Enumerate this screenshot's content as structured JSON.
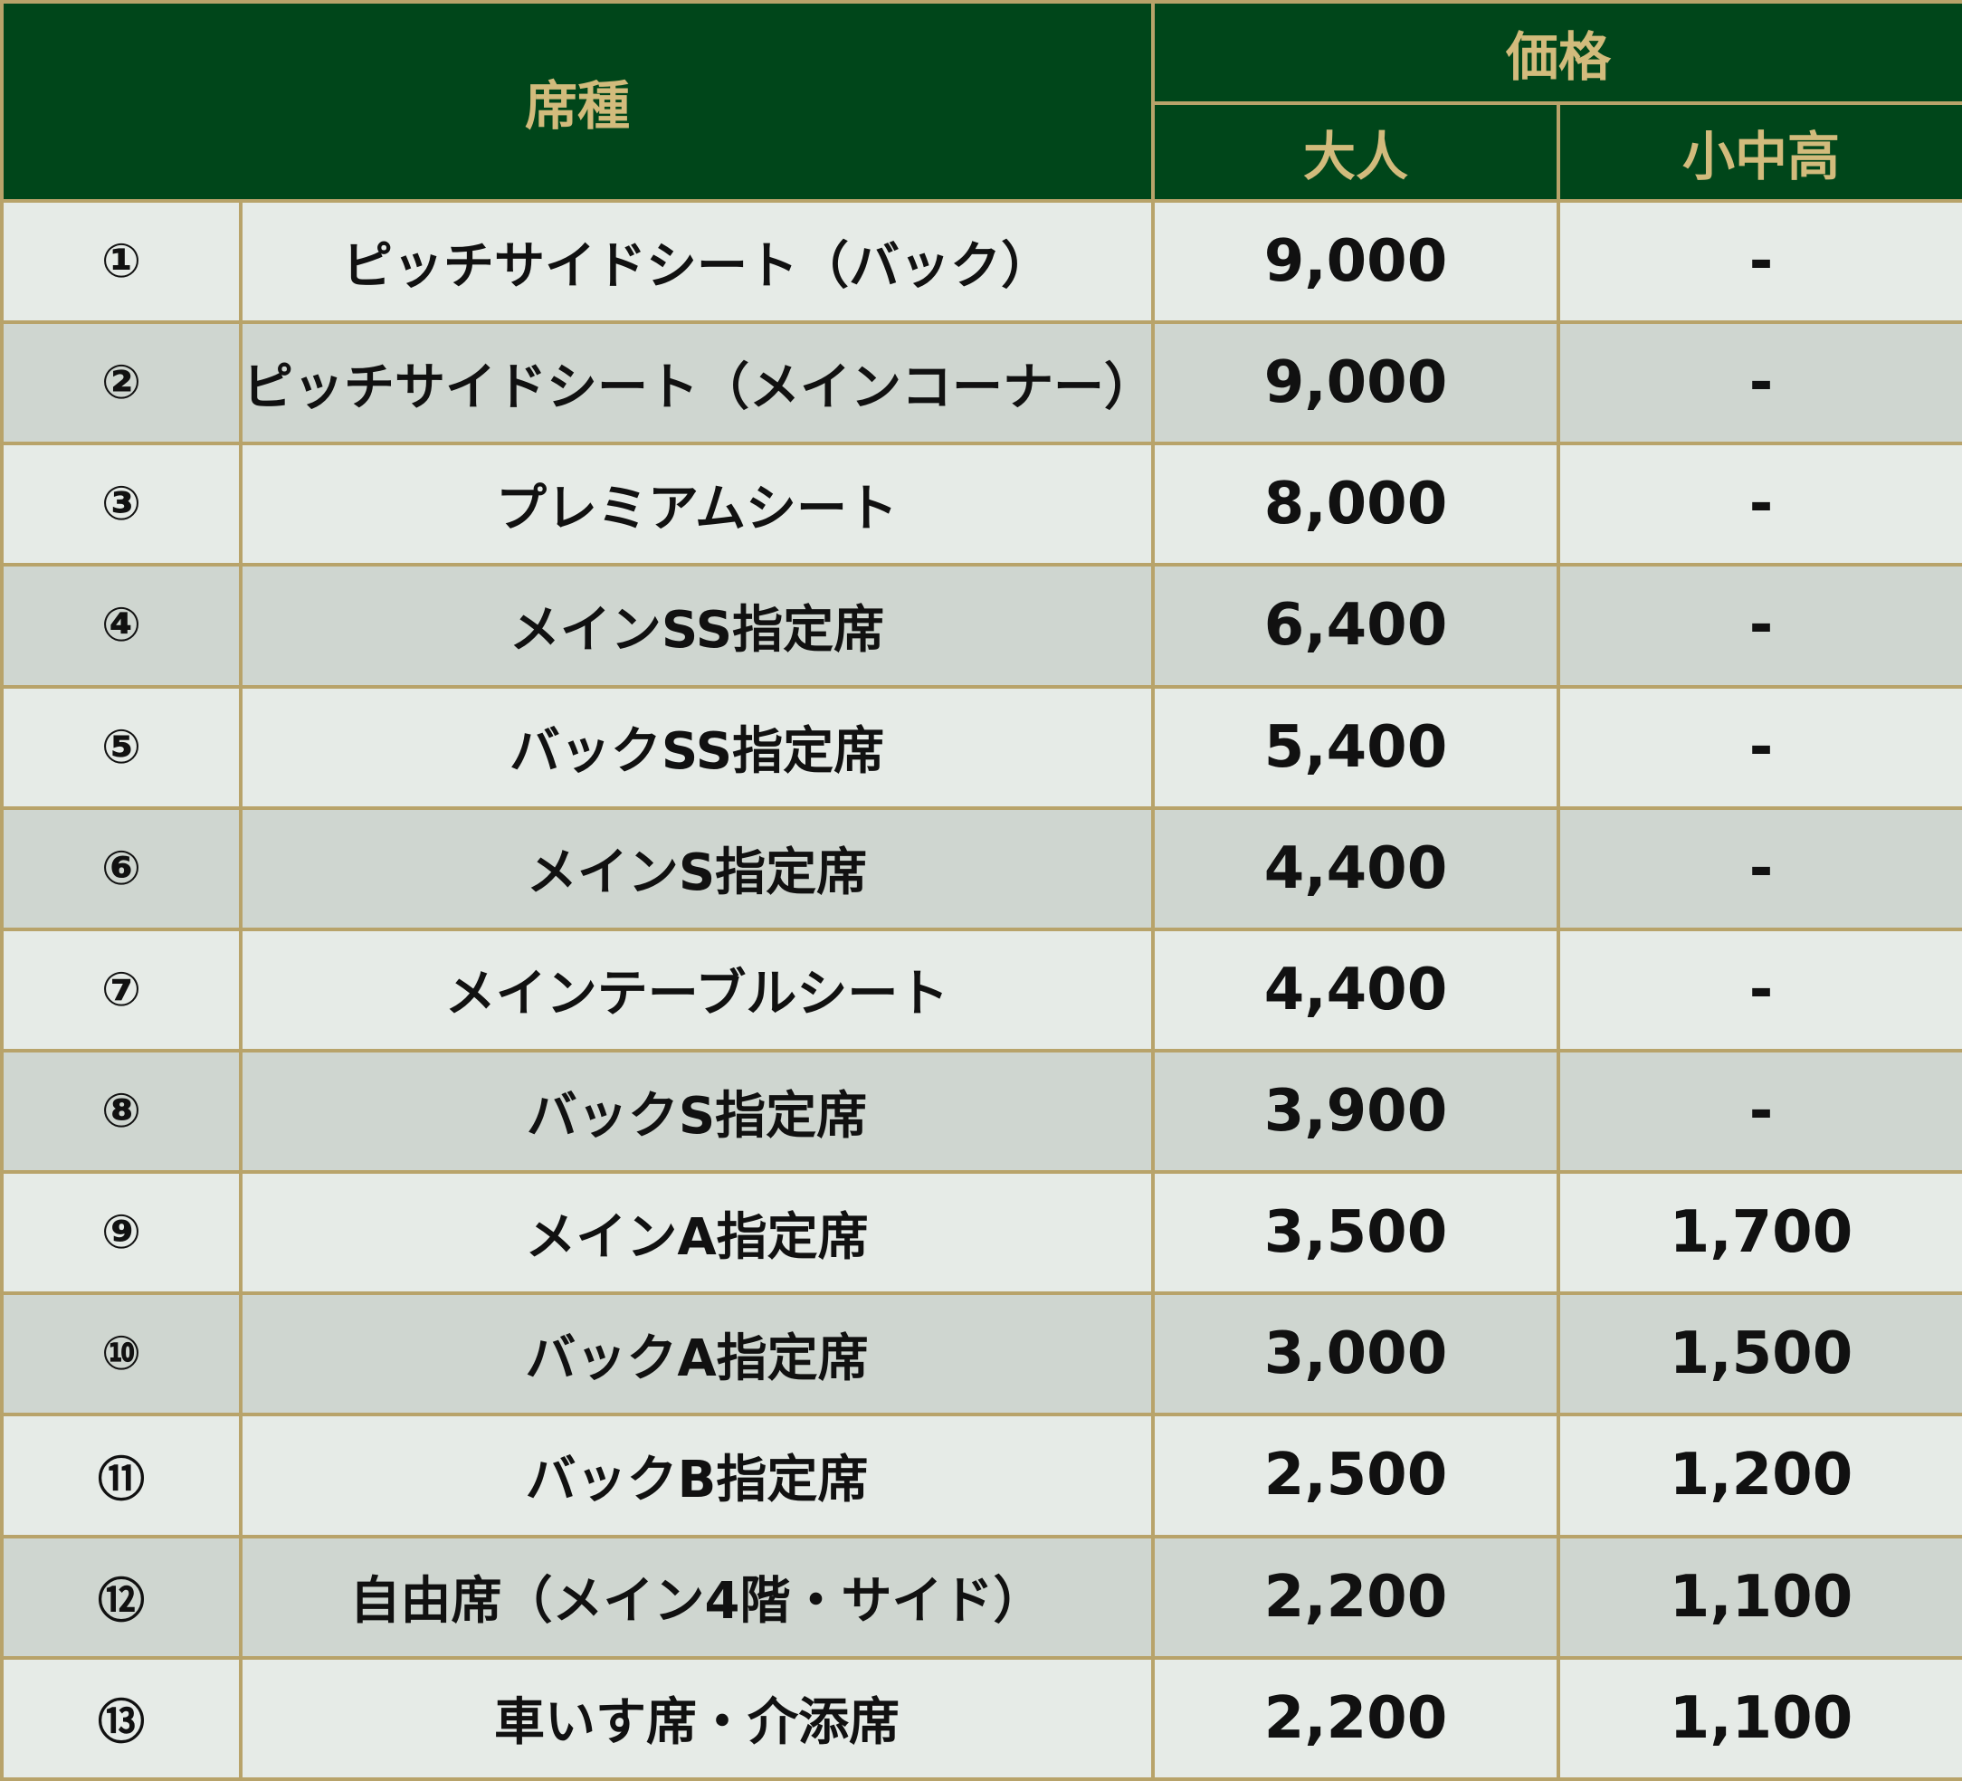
{
  "header": {
    "seat_type": "席種",
    "price": "価格",
    "adult": "大人",
    "student": "小中高"
  },
  "rows": [
    {
      "no": "①",
      "name": "ピッチサイドシート（バック）",
      "adult": "9,000",
      "student": "-"
    },
    {
      "no": "②",
      "name": "ピッチサイドシート（メインコーナー）",
      "adult": "9,000",
      "student": "-"
    },
    {
      "no": "③",
      "name": "プレミアムシート",
      "adult": "8,000",
      "student": "-"
    },
    {
      "no": "④",
      "name": "メインSS指定席",
      "adult": "6,400",
      "student": "-"
    },
    {
      "no": "⑤",
      "name": "バックSS指定席",
      "adult": "5,400",
      "student": "-"
    },
    {
      "no": "⑥",
      "name": "メインS指定席",
      "adult": "4,400",
      "student": "-"
    },
    {
      "no": "⑦",
      "name": "メインテーブルシート",
      "adult": "4,400",
      "student": "-"
    },
    {
      "no": "⑧",
      "name": "バックS指定席",
      "adult": "3,900",
      "student": "-"
    },
    {
      "no": "⑨",
      "name": "メインA指定席",
      "adult": "3,500",
      "student": "1,700"
    },
    {
      "no": "⑩",
      "name": "バックA指定席",
      "adult": "3,000",
      "student": "1,500"
    },
    {
      "no": "⑪",
      "name": "バックB指定席",
      "adult": "2,500",
      "student": "1,200"
    },
    {
      "no": "⑫",
      "name": "自由席（メイン4階・サイド）",
      "adult": "2,200",
      "student": "1,100"
    },
    {
      "no": "⑬",
      "name": "車いす席・介添席",
      "adult": "2,200",
      "student": "1,100"
    }
  ],
  "colors": {
    "header_bg": "#00461a",
    "header_text": "#d2bb7c",
    "border": "#b8a36a",
    "row_light": "#e6ebe7",
    "row_dark": "#cfd6d0"
  }
}
